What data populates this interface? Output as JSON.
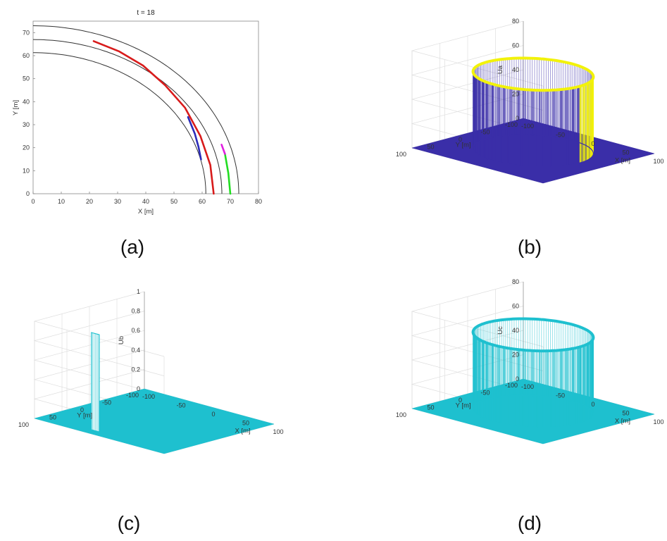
{
  "chart_data": [
    {
      "panel": "(a)",
      "type": "line",
      "title": "t = 18",
      "xlabel": "X [m]",
      "ylabel": "Y [m]",
      "xlim": [
        0,
        80
      ],
      "ylim": [
        0,
        75
      ],
      "xticks": [
        "0",
        "10",
        "20",
        "30",
        "40",
        "50",
        "60",
        "70",
        "80"
      ],
      "yticks": [
        "0",
        "10",
        "20",
        "30",
        "40",
        "50",
        "60",
        "70"
      ],
      "lane_boundaries": [
        {
          "radius": 61.3,
          "color": "#333333"
        },
        {
          "radius": 67.0,
          "color": "#333333"
        },
        {
          "radius": 73.0,
          "color": "#333333"
        }
      ],
      "series": [
        {
          "color": "#d81b1b",
          "x": [
            64.1,
            62.9,
            59.4,
            53.9,
            46.9,
            39.0,
            30.6,
            21.5
          ],
          "y": [
            0.0,
            12.5,
            25.0,
            37.4,
            47.1,
            55.7,
            61.8,
            66.3
          ]
        },
        {
          "color": "#2b2bb8",
          "x": [
            59.6,
            58.7,
            57.4,
            55.0
          ],
          "y": [
            14.9,
            20.4,
            26.1,
            33.3
          ]
        },
        {
          "color": "#22dd22",
          "x": [
            70.0,
            69.3,
            68.1
          ],
          "y": [
            0.0,
            8.9,
            17.3
          ]
        },
        {
          "color": "#e020e0",
          "x": [
            68.1,
            66.9
          ],
          "y": [
            17.3,
            21.3
          ]
        }
      ]
    },
    {
      "panel": "(b)",
      "type": "surface",
      "zlabel": "Ua",
      "xlabel": "X [m]",
      "ylabel": "Y [m]",
      "zlim": [
        0,
        80
      ],
      "zticks": [
        "0",
        "20",
        "40",
        "60",
        "80"
      ],
      "xticks": [
        "-100",
        "-50",
        "0",
        "50",
        "100"
      ],
      "yticks": [
        "100",
        "50",
        "0",
        "-50",
        "-100"
      ],
      "ring_height": 63,
      "colors": {
        "floor": "#3a2ea8",
        "wall": "#3a2ea8",
        "rim": "#f2f20a",
        "highlight": "#f2f20a"
      }
    },
    {
      "panel": "(c)",
      "type": "surface",
      "zlabel": "Ub",
      "xlabel": "X [m]",
      "ylabel": "Y [m]",
      "zlim": [
        0,
        1
      ],
      "zticks": [
        "0",
        "0.2",
        "0.4",
        "0.6",
        "0.8",
        "1"
      ],
      "xticks": [
        "-100",
        "-50",
        "0",
        "50",
        "100"
      ],
      "yticks": [
        "100",
        "50",
        "0",
        "-50",
        "-100"
      ],
      "peak_height": 1,
      "colors": {
        "floor": "#1ec0cf",
        "wall": "#1ec0cf"
      }
    },
    {
      "panel": "(d)",
      "type": "surface",
      "zlabel": "Uc",
      "xlabel": "X [m]",
      "ylabel": "Y [m]",
      "zlim": [
        0,
        80
      ],
      "zticks": [
        "0",
        "20",
        "40",
        "60",
        "80"
      ],
      "xticks": [
        "-100",
        "-50",
        "0",
        "50",
        "100"
      ],
      "yticks": [
        "100",
        "50",
        "0",
        "-50",
        "-100"
      ],
      "ring_height": 63,
      "colors": {
        "floor": "#1ec0cf",
        "wall": "#1ec0cf",
        "rim": "#1ec0cf"
      }
    }
  ],
  "panel_labels": [
    "(a)",
    "(b)",
    "(c)",
    "(d)"
  ]
}
